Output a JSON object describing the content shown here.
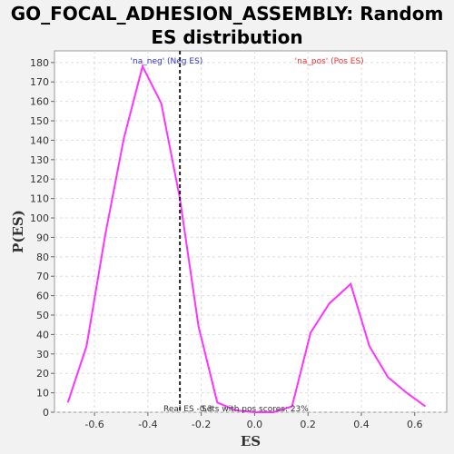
{
  "chart_data": {
    "type": "line",
    "title": "GO_FOCAL_ADHESION_ASSEMBLY: Random ES distribution",
    "xlabel": "ES",
    "ylabel": "P(ES)",
    "xlim": [
      -0.75,
      0.72
    ],
    "ylim": [
      0,
      186
    ],
    "xticks": [
      -0.6,
      -0.4,
      -0.2,
      0.0,
      0.2,
      0.4,
      0.6
    ],
    "xtick_labels": [
      "-0.6",
      "-0.4",
      "-0.2",
      "0.0",
      "0.2",
      "0.4",
      "0.6"
    ],
    "yticks": [
      0,
      10,
      20,
      30,
      40,
      50,
      60,
      70,
      80,
      90,
      100,
      110,
      120,
      130,
      140,
      150,
      160,
      170,
      180
    ],
    "grid": true,
    "series": [
      {
        "name": "",
        "color": "#ff33ff",
        "x": [
          -0.7,
          -0.63,
          -0.56,
          -0.49,
          -0.42,
          -0.35,
          -0.28,
          -0.21,
          -0.14,
          -0.07,
          0.0,
          0.07,
          0.14,
          0.21,
          0.28,
          0.36,
          0.43,
          0.5,
          0.57,
          0.64
        ],
        "y": [
          5,
          34,
          91,
          141,
          178,
          159,
          110,
          44,
          5,
          1,
          0,
          0,
          3,
          41,
          56,
          66,
          34,
          18,
          10,
          3
        ]
      }
    ],
    "real_es": -0.28,
    "annotations": {
      "neg_label": "'na_neg' (Neg ES)",
      "neg_color": "#3333cc",
      "pos_label": "'na_pos' (Pos ES)",
      "pos_color": "#ee3333",
      "real_es_label": "Real ES -0.3",
      "pos_scores_label": "Sets with pos scores: 23%"
    }
  }
}
